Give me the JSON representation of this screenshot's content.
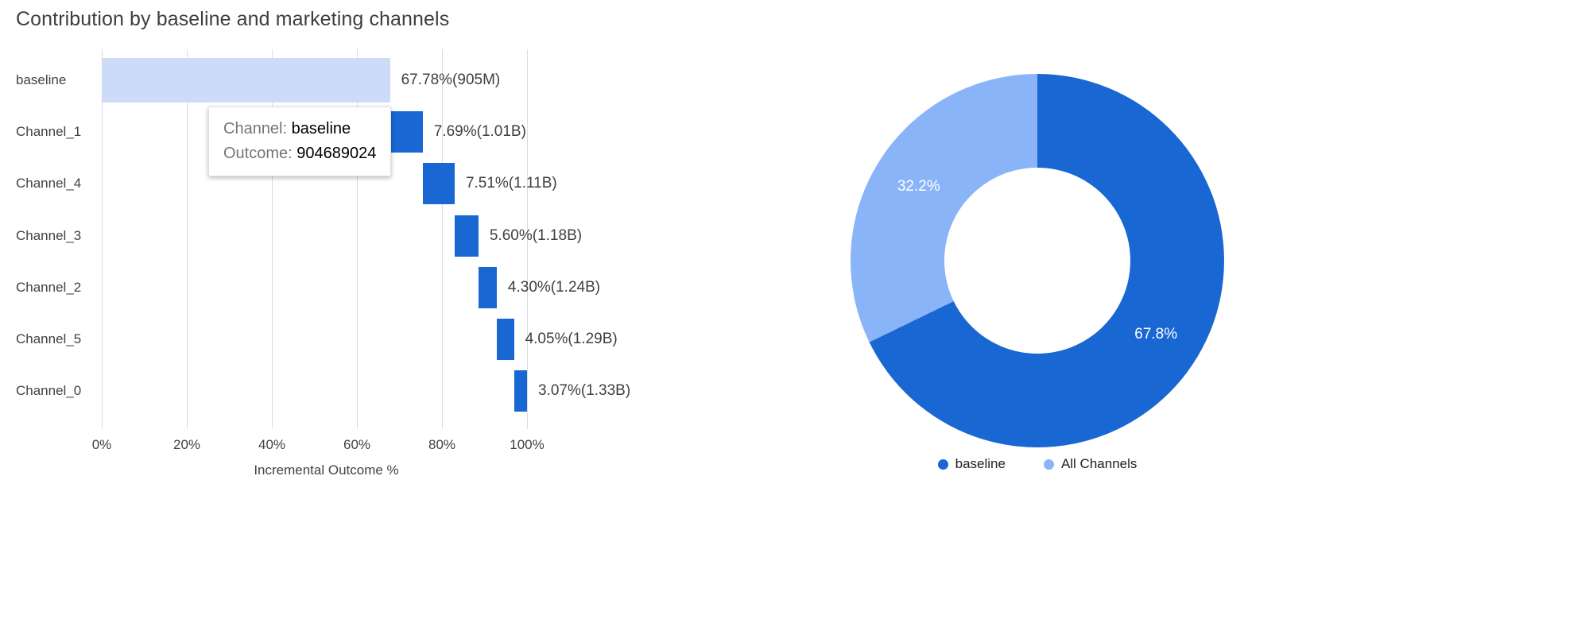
{
  "title": "Contribution by baseline and marketing channels",
  "colors": {
    "baseline_bar": "#ccdcf8",
    "channel_bar": "#1967d2",
    "donut_primary": "#1967d2",
    "donut_secondary": "#8ab4f8",
    "gridline": "#dadce0"
  },
  "tooltip": {
    "channel_label": "Channel:",
    "channel_value": "baseline",
    "outcome_label": "Outcome:",
    "outcome_value": "904689024"
  },
  "chart_data": [
    {
      "type": "bar",
      "variant": "horizontal-waterfall",
      "title": "Contribution by baseline and marketing channels",
      "xlabel": "Incremental Outcome %",
      "x_ticks": [
        "0%",
        "20%",
        "40%",
        "60%",
        "80%",
        "100%"
      ],
      "x_tick_values": [
        0,
        20,
        40,
        60,
        80,
        100
      ],
      "xlim": [
        0,
        105
      ],
      "grid": true,
      "categories": [
        "baseline",
        "Channel_1",
        "Channel_4",
        "Channel_3",
        "Channel_2",
        "Channel_5",
        "Channel_0"
      ],
      "starts": [
        0,
        67.78,
        75.47,
        82.98,
        88.58,
        92.88,
        96.93
      ],
      "values": [
        67.78,
        7.69,
        7.51,
        5.6,
        4.3,
        4.05,
        3.07
      ],
      "labels": [
        "67.78%(905M)",
        "7.69%(1.01B)",
        "7.51%(1.11B)",
        "5.60%(1.18B)",
        "4.30%(1.24B)",
        "4.05%(1.29B)",
        "3.07%(1.33B)"
      ]
    },
    {
      "type": "pie",
      "variant": "donut",
      "slices": [
        {
          "name": "baseline",
          "value": 67.8,
          "label": "67.8%"
        },
        {
          "name": "All Channels",
          "value": 32.2,
          "label": "32.2%"
        }
      ],
      "legend": [
        {
          "label": "baseline"
        },
        {
          "label": "All Channels"
        }
      ],
      "legend_position": "bottom"
    }
  ]
}
